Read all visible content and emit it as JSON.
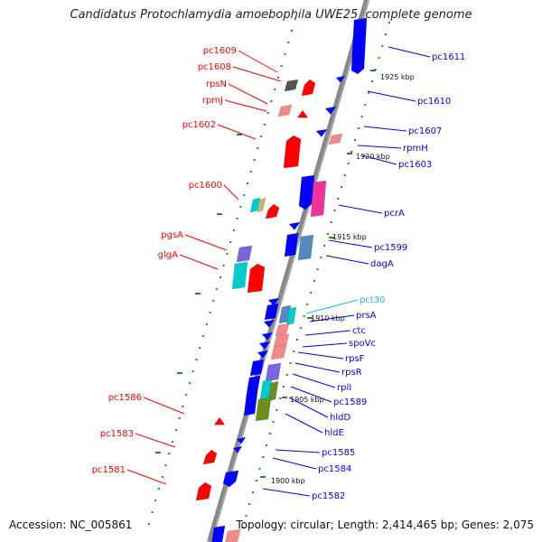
{
  "title": "Candidatus Protochlamydia amoebophila UWE25, complete genome",
  "accession": "Accession: NC_005861",
  "topology": "Topology: circular; Length: 2,414,465 bp; Genes: 2,075",
  "kbp_markers": [
    "1925 kbp",
    "1920 kbp",
    "1915 kbp",
    "1910 kbp",
    "1905 kbp",
    "1900 kbp"
  ],
  "left_labels": [
    "pc1609",
    "pc1608",
    "rpsN",
    "rpmJ",
    "pc1602",
    "pc1600",
    "pgsA",
    "glgA",
    "pc1586",
    "pc1583",
    "pc1581"
  ],
  "right_labels": [
    "pc1611",
    "pc1610",
    "pc1607",
    "rpmH",
    "pc1603",
    "pcrA",
    "pc1599",
    "dagA",
    "pct30",
    "prsA",
    "ctc",
    "spoVc",
    "rpsF",
    "rpsR",
    "rplI",
    "pc1589",
    "hldD",
    "hldE",
    "pc1585",
    "pc1584",
    "pc1582"
  ],
  "colors": {
    "forward_strand": "#ff0000",
    "reverse_strand": "#0000ff",
    "rna_label": "#22bbdd",
    "tick_marks": "#228B22",
    "backbone": "#888888"
  }
}
